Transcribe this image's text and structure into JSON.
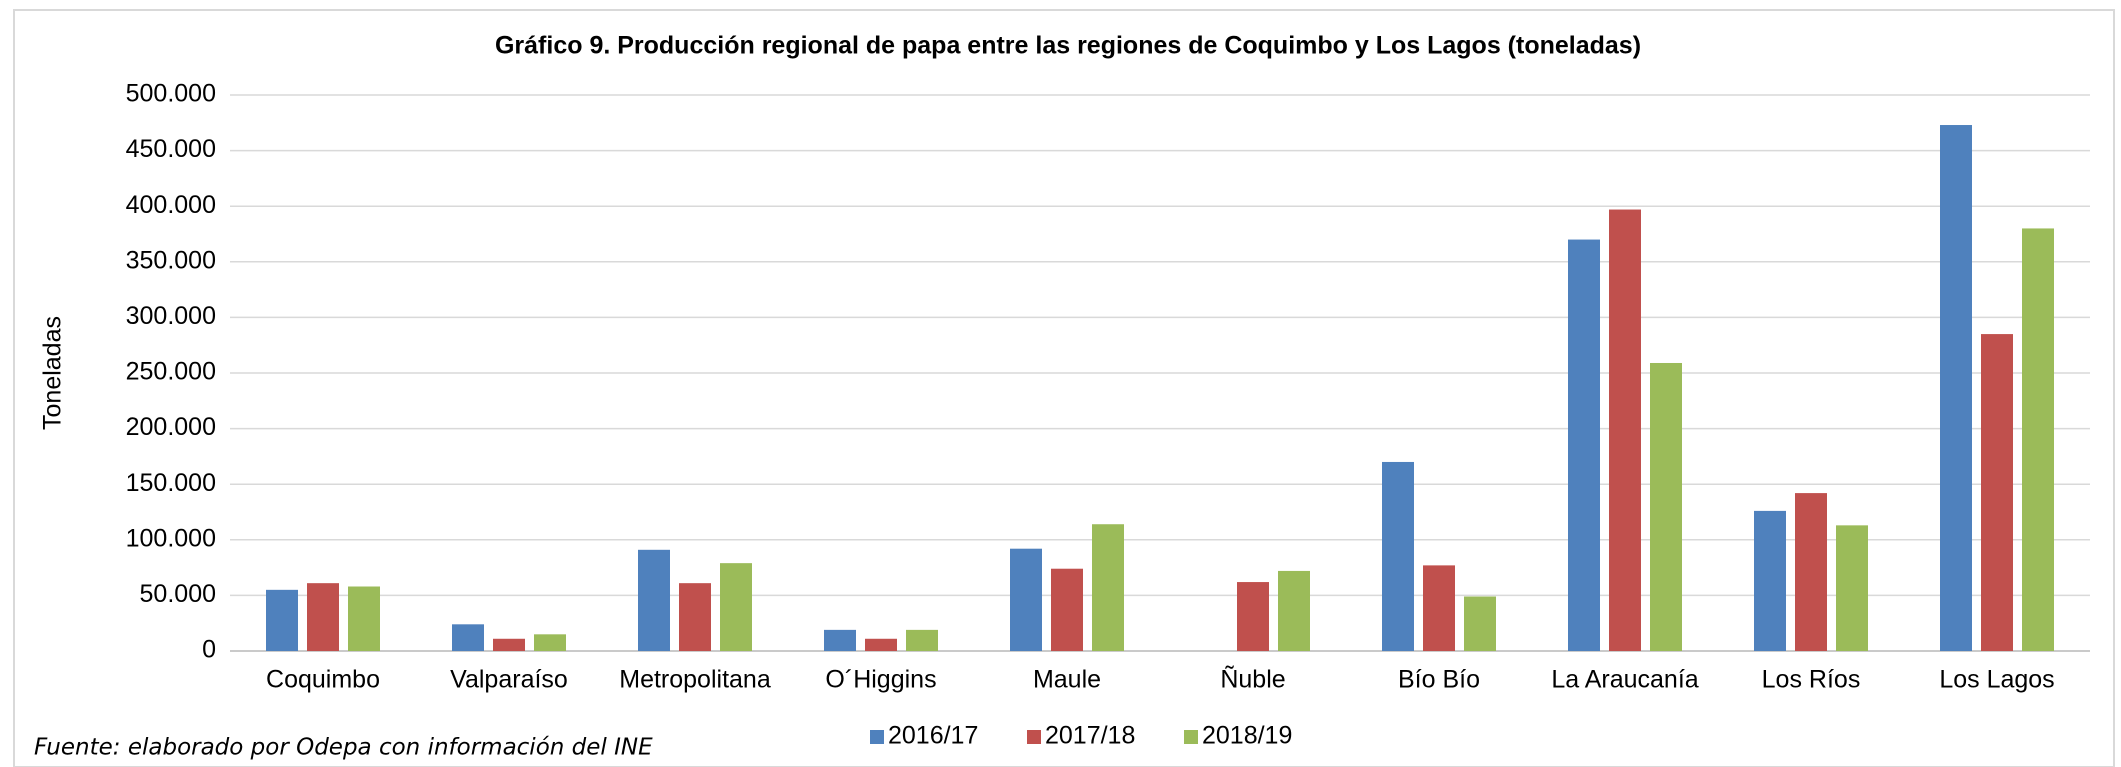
{
  "chart_data": {
    "type": "bar",
    "title": "Gráfico 9. Producción regional de papa entre las regiones de Coquimbo y Los Lagos (toneladas)",
    "y_label": "Toneladas",
    "source": "Fuente: elaborado por Odepa con información del INE",
    "categories": [
      "Coquimbo",
      "Valparaíso",
      "Metropolitana",
      "O´Higgins",
      "Maule",
      "Ñuble",
      "Bío Bío",
      "La Araucanía",
      "Los Ríos",
      "Los Lagos"
    ],
    "series": [
      {
        "name": "2016/17",
        "color": "#4f81bd",
        "values": [
          55000,
          24000,
          91000,
          19000,
          92000,
          null,
          170000,
          370000,
          126000,
          473000
        ]
      },
      {
        "name": "2017/18",
        "color": "#c0504d",
        "values": [
          61000,
          11000,
          61000,
          11000,
          74000,
          62000,
          77000,
          397000,
          142000,
          285000
        ]
      },
      {
        "name": "2018/19",
        "color": "#9bbb59",
        "values": [
          58000,
          15000,
          79000,
          19000,
          114000,
          72000,
          49000,
          259000,
          113000,
          380000
        ]
      }
    ],
    "ylim": [
      0,
      500000
    ],
    "yticks": [
      0,
      {
        "value": 50000,
        "label": "50.000"
      },
      {
        "value": 100000,
        "label": "100.000"
      },
      {
        "value": 150000,
        "label": "150.000"
      },
      {
        "value": 200000,
        "label": "200.000"
      },
      {
        "value": 250000,
        "label": "250.000"
      },
      {
        "value": 300000,
        "label": "300.000"
      },
      {
        "value": 350000,
        "label": "350.000"
      },
      {
        "value": 400000,
        "label": "400.000"
      },
      {
        "value": 450000,
        "label": "450.000"
      },
      {
        "value": 500000,
        "label": "500.000"
      }
    ],
    "grid": true,
    "legend": "bottom"
  }
}
